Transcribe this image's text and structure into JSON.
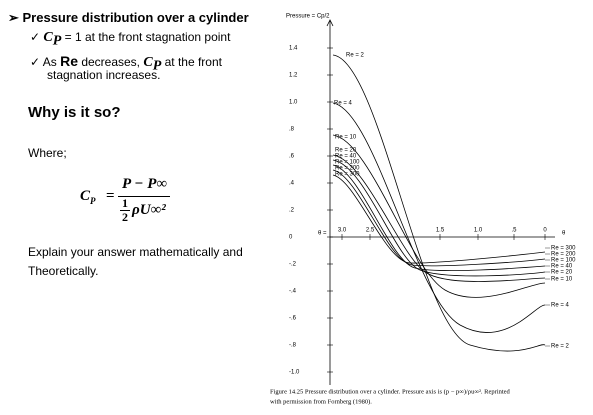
{
  "slide": {
    "bullet_main": "Pressure distribution over a cylinder",
    "sub1": {
      "c": "C",
      "sub": "P",
      "text": " = 1 at the front stagnation point"
    },
    "sub2": {
      "a": "As ",
      "re": "Re",
      "b": " decreases, ",
      "c": "C",
      "sub": "P",
      "d": " at the front",
      "line2": "stagnation increases."
    },
    "question": "Why is it so?",
    "where": "Where;",
    "formula": {
      "lhs_c": "C",
      "lhs_sub": "P",
      "eq": "=",
      "num": "P − P∞",
      "half_n": "1",
      "half_d": "2",
      "den_rest": "ρU∞²"
    },
    "explain_1": "Explain your answer mathematically and",
    "explain_2": "Theoretically."
  },
  "figure": {
    "y_title": "Pressure = Cp/2",
    "y_tick_labels": [
      "1.4",
      "1.2",
      "1.0",
      ".8",
      ".6",
      ".4",
      ".2",
      "0",
      "-.2",
      "-.4",
      "-.6",
      "-.8",
      "-1.0"
    ],
    "theta_prefix": "θ =",
    "x_tick_labels": [
      "3.0",
      "2.5",
      "1.5",
      "1.0",
      ".5",
      "0"
    ],
    "x_title": "θ",
    "left_labels": [
      "Re = 2",
      "Re = 4",
      "Re = 10",
      "Re = 20",
      "Re = 40",
      "Re = 100",
      "Re = 200",
      "Re = 300"
    ],
    "right_labels": [
      "Re = 300",
      "Re = 200",
      "Re = 100",
      "Re = 40",
      "Re = 20",
      "Re = 10",
      "Re = 4",
      "Re = 2"
    ],
    "caption_1": "Figure 14.25  Pressure distribution over a cylinder. Pressure axis is (p − p∞)/ρu∞². Reprinted",
    "caption_2": "with permission from Fornberg (1980)."
  }
}
